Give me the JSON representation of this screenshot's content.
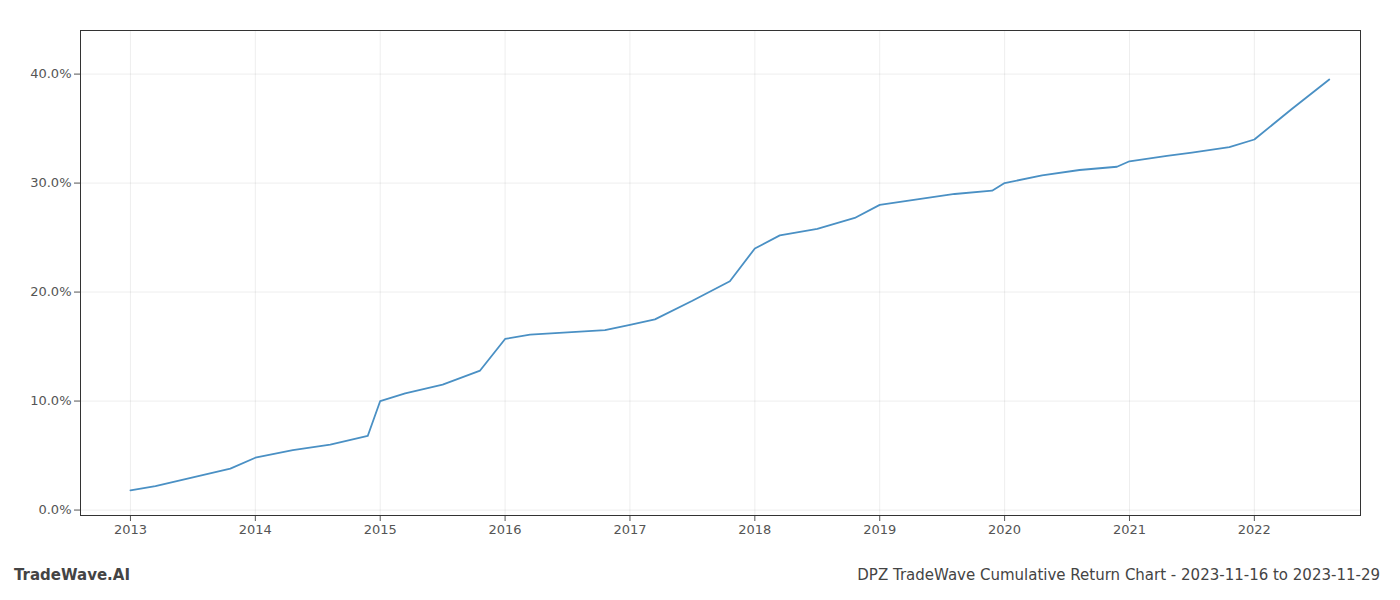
{
  "chart_data": {
    "type": "line",
    "title": "DPZ TradeWave Cumulative Return Chart - 2023-11-16 to 2023-11-29",
    "annotations": [
      "TradeWave.AI"
    ],
    "color": "#4a90c4",
    "grid": true,
    "x": [
      2013.0,
      2013.2,
      2013.5,
      2013.8,
      2014.0,
      2014.3,
      2014.6,
      2014.9,
      2015.0,
      2015.2,
      2015.5,
      2015.8,
      2016.0,
      2016.2,
      2016.5,
      2016.8,
      2017.0,
      2017.2,
      2017.5,
      2017.8,
      2018.0,
      2018.2,
      2018.5,
      2018.8,
      2019.0,
      2019.3,
      2019.6,
      2019.9,
      2020.0,
      2020.3,
      2020.6,
      2020.9,
      2021.0,
      2021.3,
      2021.5,
      2021.8,
      2022.0,
      2022.3,
      2022.6
    ],
    "values": [
      0.018,
      0.022,
      0.03,
      0.038,
      0.048,
      0.055,
      0.06,
      0.068,
      0.1,
      0.107,
      0.115,
      0.128,
      0.157,
      0.161,
      0.163,
      0.165,
      0.17,
      0.175,
      0.192,
      0.21,
      0.24,
      0.252,
      0.258,
      0.268,
      0.28,
      0.285,
      0.29,
      0.293,
      0.3,
      0.307,
      0.312,
      0.315,
      0.32,
      0.325,
      0.328,
      0.333,
      0.34,
      0.368,
      0.395
    ],
    "xlim": [
      2012.6,
      2022.85
    ],
    "xticks": [
      2013,
      2014,
      2015,
      2016,
      2017,
      2018,
      2019,
      2020,
      2021,
      2022
    ],
    "ylim": [
      -0.005,
      0.44
    ],
    "yticks": [
      {
        "value": 0.0,
        "label": "0.0%"
      },
      {
        "value": 0.1,
        "label": "10.0%"
      },
      {
        "value": 0.2,
        "label": "20.0%"
      },
      {
        "value": 0.3,
        "label": "30.0%"
      },
      {
        "value": 0.4,
        "label": "40.0%"
      }
    ]
  }
}
